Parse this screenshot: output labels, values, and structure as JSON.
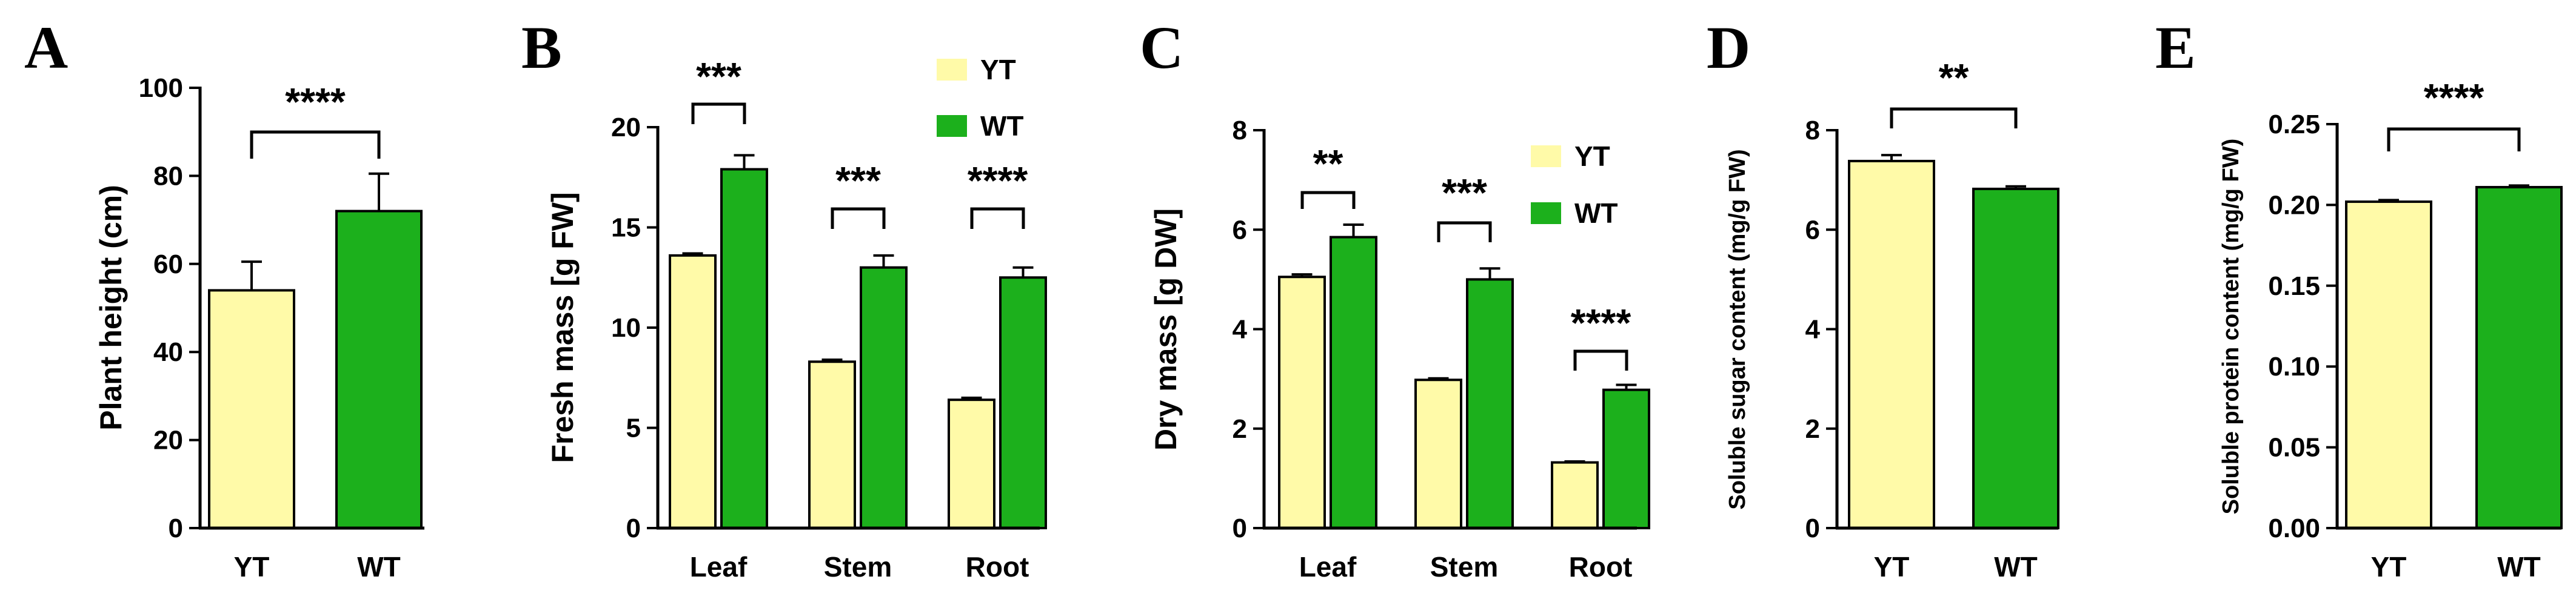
{
  "colors": {
    "YT": "#FFFAA8",
    "WT": "#1CB01C",
    "axis": "#000000"
  },
  "chart_data": [
    {
      "panel": "A",
      "type": "bar",
      "categories": [
        "YT",
        "WT"
      ],
      "values": [
        54,
        72
      ],
      "errors": [
        6.5,
        8.5
      ],
      "ylabel": "Plant height (cm)",
      "ylim": [
        0,
        100
      ],
      "yticks": [
        "0",
        "20",
        "40",
        "60",
        "80",
        "100"
      ],
      "significance": [
        "****"
      ],
      "legend": []
    },
    {
      "panel": "B",
      "type": "bar",
      "categories": [
        "Leaf",
        "Stem",
        "Root"
      ],
      "series": [
        {
          "name": "YT",
          "values": [
            13.6,
            8.3,
            6.4
          ],
          "errors": [
            0.1,
            0.1,
            0.1
          ]
        },
        {
          "name": "WT",
          "values": [
            17.9,
            13.0,
            12.5
          ],
          "errors": [
            0.7,
            0.6,
            0.5
          ]
        }
      ],
      "ylabel": "Fresh mass [g FW]",
      "ylim": [
        0,
        20
      ],
      "yticks": [
        "0",
        "5",
        "10",
        "15",
        "20"
      ],
      "significance": [
        "***",
        "***",
        "****"
      ],
      "legend": [
        "YT",
        "WT"
      ]
    },
    {
      "panel": "C",
      "type": "bar",
      "categories": [
        "Leaf",
        "Stem",
        "Root"
      ],
      "series": [
        {
          "name": "YT",
          "values": [
            5.05,
            2.98,
            1.32
          ],
          "errors": [
            0.05,
            0.03,
            0.02
          ]
        },
        {
          "name": "WT",
          "values": [
            5.85,
            5.0,
            2.78
          ],
          "errors": [
            0.25,
            0.22,
            0.1
          ]
        }
      ],
      "ylabel": "Dry mass [g DW]",
      "ylim": [
        0,
        8
      ],
      "yticks": [
        "0",
        "2",
        "4",
        "6",
        "8"
      ],
      "significance": [
        "**",
        "***",
        "****"
      ],
      "legend": [
        "YT",
        "WT"
      ]
    },
    {
      "panel": "D",
      "type": "bar",
      "categories": [
        "YT",
        "WT"
      ],
      "values": [
        7.38,
        6.82
      ],
      "errors": [
        0.12,
        0.05
      ],
      "ylabel": "Soluble sugar content (mg/g FW)",
      "ylim": [
        0,
        8
      ],
      "yticks": [
        "0",
        "2",
        "4",
        "6",
        "8"
      ],
      "significance": [
        "**"
      ],
      "legend": []
    },
    {
      "panel": "E",
      "type": "bar",
      "categories": [
        "YT",
        "WT"
      ],
      "values": [
        0.202,
        0.211
      ],
      "errors": [
        0.001,
        0.001
      ],
      "ylabel": "Soluble protein content (mg/g FW)",
      "ylim": [
        0,
        0.25
      ],
      "yticks": [
        "0.00",
        "0.05",
        "0.10",
        "0.15",
        "0.20",
        "0.25"
      ],
      "significance": [
        "****"
      ],
      "legend": []
    }
  ]
}
